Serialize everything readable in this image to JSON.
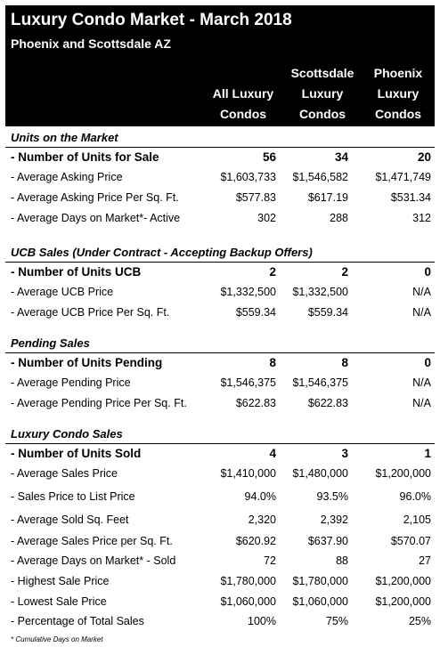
{
  "title": "Luxury Condo Market - March 2018",
  "subtitle": "Phoenix and Scottsdale AZ",
  "columns": [
    [
      "",
      "All Luxury",
      "Condos"
    ],
    [
      "Scottsdale",
      "Luxury",
      "Condos"
    ],
    [
      "Phoenix",
      "Luxury",
      "Condos"
    ]
  ],
  "sections": [
    {
      "title": "Units on the Market",
      "rows": [
        {
          "label": "- Number of Units for Sale",
          "values": [
            "56",
            "34",
            "20"
          ],
          "bold": true
        },
        {
          "label": "- Average Asking Price",
          "values": [
            "$1,603,733",
            "$1,546,582",
            "$1,471,749"
          ]
        },
        {
          "label": "- Average Asking Price Per Sq. Ft.",
          "values": [
            "$577.83",
            "$617.19",
            "$531.34"
          ]
        },
        {
          "label": "- Average Days on Market*- Active",
          "values": [
            "302",
            "288",
            "312"
          ]
        }
      ]
    },
    {
      "title": "UCB Sales (Under Contract - Accepting Backup Offers)",
      "rows": [
        {
          "label": "- Number of Units UCB",
          "values": [
            "2",
            "2",
            "0"
          ],
          "bold": true
        },
        {
          "label": "- Average UCB Price",
          "values": [
            "$1,332,500",
            "$1,332,500",
            "N/A"
          ]
        },
        {
          "label": "- Average UCB Price Per Sq. Ft.",
          "values": [
            "$559.34",
            "$559.34",
            "N/A"
          ]
        }
      ]
    },
    {
      "title": "Pending Sales",
      "rows": [
        {
          "label": "- Number of Units Pending",
          "values": [
            "8",
            "8",
            "0"
          ],
          "bold": true
        },
        {
          "label": "- Average Pending Price",
          "values": [
            "$1,546,375",
            "$1,546,375",
            "N/A"
          ]
        },
        {
          "label": "- Average Pending Price Per Sq. Ft.",
          "values": [
            "$622.83",
            "$622.83",
            "N/A"
          ]
        }
      ]
    },
    {
      "title": "Luxury Condo Sales",
      "rows": [
        {
          "label": "- Number of Units Sold",
          "values": [
            "4",
            "3",
            "1"
          ],
          "bold": true
        },
        {
          "label": "- Average Sales Price",
          "values": [
            "$1,410,000",
            "$1,480,000",
            "$1,200,000"
          ]
        },
        {
          "label": "- Sales Price to List Price",
          "values": [
            "94.0%",
            "93.5%",
            "96.0%"
          ]
        },
        {
          "label": "- Average Sold Sq. Feet",
          "values": [
            "2,320",
            "2,392",
            "2,105"
          ]
        },
        {
          "label": "- Average Sales Price per Sq. Ft.",
          "values": [
            "$620.92",
            "$637.90",
            "$570.07"
          ]
        },
        {
          "label": "- Average Days on Market* - Sold",
          "values": [
            "72",
            "88",
            "27"
          ]
        },
        {
          "label": "- Highest Sale Price",
          "values": [
            "$1,780,000",
            "$1,780,000",
            "$1,200,000"
          ]
        },
        {
          "label": "- Lowest Sale Price",
          "values": [
            "$1,060,000",
            "$1,060,000",
            "$1,200,000"
          ]
        },
        {
          "label": "- Percentage of Total Sales",
          "values": [
            "100%",
            "75%",
            "25%"
          ]
        }
      ]
    }
  ],
  "footnote": "* Cumulative Days on Market"
}
